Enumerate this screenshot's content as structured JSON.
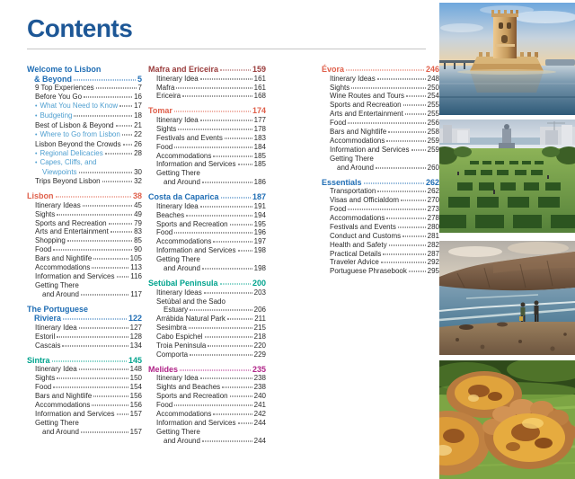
{
  "page": {
    "title": "Contents"
  },
  "theme": {
    "title": "#1d5796",
    "blue": "#1f6db4",
    "red": "#df5f4a",
    "maroon": "#9a3c3c",
    "teal": "#00a38d",
    "magenta": "#b02488",
    "bullet": "#4f9fd0",
    "text": "#2b2b2b"
  },
  "glyphs": {
    "bullet": "•"
  },
  "toc": {
    "columns": [
      {
        "sections": [
          {
            "title_lines": [
              "Welcome to Lisbon",
              "& Beyond"
            ],
            "page": "5",
            "color": "blue",
            "entries": [
              {
                "label": "9 Top Experiences",
                "page": "7"
              },
              {
                "label": "Before You Go",
                "page": "16"
              },
              {
                "label": "What You Need to Know",
                "page": "17",
                "bullet": true
              },
              {
                "label": "Budgeting",
                "page": "18",
                "bullet": true
              },
              {
                "label": "Best of Lisbon & Beyond",
                "page": "21"
              },
              {
                "label": "Where to Go from Lisbon",
                "page": "22",
                "bullet": true
              },
              {
                "label": "Lisbon Beyond the Crowds",
                "page": "26"
              },
              {
                "label": "Regional Delicacies",
                "page": "28",
                "bullet": true
              },
              {
                "label": "Capes, Cliffs, and",
                "label2": "Viewpoints",
                "page": "30",
                "bullet": true
              },
              {
                "label": "Trips Beyond Lisbon",
                "page": "32"
              }
            ]
          },
          {
            "title_lines": [
              "Lisbon"
            ],
            "page": "38",
            "color": "red",
            "entries": [
              {
                "label": "Itinerary Ideas",
                "page": "45"
              },
              {
                "label": "Sights",
                "page": "49"
              },
              {
                "label": "Sports and Recreation",
                "page": "79"
              },
              {
                "label": "Arts and Entertainment",
                "page": "83"
              },
              {
                "label": "Shopping",
                "page": "85"
              },
              {
                "label": "Food",
                "page": "90"
              },
              {
                "label": "Bars and Nightlife",
                "page": "105"
              },
              {
                "label": "Accommodations",
                "page": "113"
              },
              {
                "label": "Information and Services",
                "page": "116"
              },
              {
                "label": "Getting There",
                "label2": "and Around",
                "page": "117"
              }
            ]
          },
          {
            "title_lines": [
              "The Portuguese",
              "Riviera"
            ],
            "page": "122",
            "color": "blue",
            "entries": [
              {
                "label": "Itinerary Idea",
                "page": "127"
              },
              {
                "label": "Estoril",
                "page": "128"
              },
              {
                "label": "Cascais",
                "page": "134"
              }
            ]
          },
          {
            "title_lines": [
              "Sintra"
            ],
            "page": "145",
            "color": "teal",
            "entries": [
              {
                "label": "Itinerary Idea",
                "page": "148"
              },
              {
                "label": "Sights",
                "page": "150"
              },
              {
                "label": "Food",
                "page": "154"
              },
              {
                "label": "Bars and Nightlife",
                "page": "156"
              },
              {
                "label": "Accommodations",
                "page": "156"
              },
              {
                "label": "Information and Services",
                "page": "157"
              },
              {
                "label": "Getting There",
                "label2": "and Around",
                "page": "157"
              }
            ]
          }
        ]
      },
      {
        "sections": [
          {
            "title_lines": [
              "Mafra and Ericeira"
            ],
            "page": "159",
            "color": "maroon",
            "entries": [
              {
                "label": "Itinerary Idea",
                "page": "161"
              },
              {
                "label": "Mafra",
                "page": "161"
              },
              {
                "label": "Ericeira",
                "page": "168"
              }
            ]
          },
          {
            "title_lines": [
              "Tomar"
            ],
            "page": "174",
            "color": "red",
            "entries": [
              {
                "label": "Itinerary Idea",
                "page": "177"
              },
              {
                "label": "Sights",
                "page": "178"
              },
              {
                "label": "Festivals and Events",
                "page": "183"
              },
              {
                "label": "Food",
                "page": "184"
              },
              {
                "label": "Accommodations",
                "page": "185"
              },
              {
                "label": "Information and Services",
                "page": "185"
              },
              {
                "label": "Getting There",
                "label2": "and Around",
                "page": "186"
              }
            ]
          },
          {
            "title_lines": [
              "Costa da Caparica"
            ],
            "page": "187",
            "color": "blue",
            "entries": [
              {
                "label": "Itinerary Idea",
                "page": "191"
              },
              {
                "label": "Beaches",
                "page": "194"
              },
              {
                "label": "Sports and Recreation",
                "page": "195"
              },
              {
                "label": "Food",
                "page": "196"
              },
              {
                "label": "Accommodations",
                "page": "197"
              },
              {
                "label": "Information and Services",
                "page": "198"
              },
              {
                "label": "Getting There",
                "label2": "and Around",
                "page": "198"
              }
            ]
          },
          {
            "title_lines": [
              "Setúbal Peninsula"
            ],
            "page": "200",
            "color": "teal",
            "entries": [
              {
                "label": "Itinerary Ideas",
                "page": "203"
              },
              {
                "label": "Setúbal and the Sado",
                "label2": "Estuary",
                "page": "206"
              },
              {
                "label": "Arrábida Natural Park",
                "page": "211"
              },
              {
                "label": "Sesimbra",
                "page": "215"
              },
              {
                "label": "Cabo Espichel",
                "page": "218"
              },
              {
                "label": "Troia Peninsula",
                "page": "220"
              },
              {
                "label": "Comporta",
                "page": "229"
              }
            ]
          },
          {
            "title_lines": [
              "Melides"
            ],
            "page": "235",
            "color": "magenta",
            "entries": [
              {
                "label": "Itinerary Idea",
                "page": "238"
              },
              {
                "label": "Sights and Beaches",
                "page": "238"
              },
              {
                "label": "Sports and Recreation",
                "page": "240"
              },
              {
                "label": "Food",
                "page": "241"
              },
              {
                "label": "Accommodations",
                "page": "242"
              },
              {
                "label": "Information and Services",
                "page": "244"
              },
              {
                "label": "Getting There",
                "label2": "and Around",
                "page": "244"
              }
            ]
          }
        ]
      },
      {
        "sections": [
          {
            "title_lines": [
              "Évora"
            ],
            "page": "246",
            "color": "red",
            "entries": [
              {
                "label": "Itinerary Ideas",
                "page": "248"
              },
              {
                "label": "Sights",
                "page": "250"
              },
              {
                "label": "Wine Routes and Tours",
                "page": "254"
              },
              {
                "label": "Sports and Recreation",
                "page": "255"
              },
              {
                "label": "Arts and Entertainment",
                "page": "255"
              },
              {
                "label": "Food",
                "page": "256"
              },
              {
                "label": "Bars and Nightlife",
                "page": "258"
              },
              {
                "label": "Accommodations",
                "page": "259"
              },
              {
                "label": "Information and Services",
                "page": "259"
              },
              {
                "label": "Getting There",
                "label2": "and Around",
                "page": "260"
              }
            ]
          },
          {
            "title_lines": [
              "Essentials"
            ],
            "page": "262",
            "color": "blue",
            "entries": [
              {
                "label": "Transportation",
                "page": "262"
              },
              {
                "label": "Visas and Officialdom",
                "page": "270"
              },
              {
                "label": "Food",
                "page": "273"
              },
              {
                "label": "Accommodations",
                "page": "278"
              },
              {
                "label": "Festivals and Events",
                "page": "280"
              },
              {
                "label": "Conduct and Customs",
                "page": "281"
              },
              {
                "label": "Health and Safety",
                "page": "282"
              },
              {
                "label": "Practical Details",
                "page": "287"
              },
              {
                "label": "Traveler Advice",
                "page": "292"
              },
              {
                "label": "Portuguese Phrasebook",
                "page": "295"
              }
            ]
          }
        ]
      }
    ]
  },
  "photos": [
    {
      "alt": "Belém Tower on the Tagus River at sunset"
    },
    {
      "alt": "Formal hedge garden of Parque Eduardo VII with Lisbon cityscape behind"
    },
    {
      "alt": "Two people on a pebble beach below coastal cliffs with ocean waves"
    },
    {
      "alt": "Pastéis de nata Portuguese custard tarts on a green tray"
    }
  ]
}
